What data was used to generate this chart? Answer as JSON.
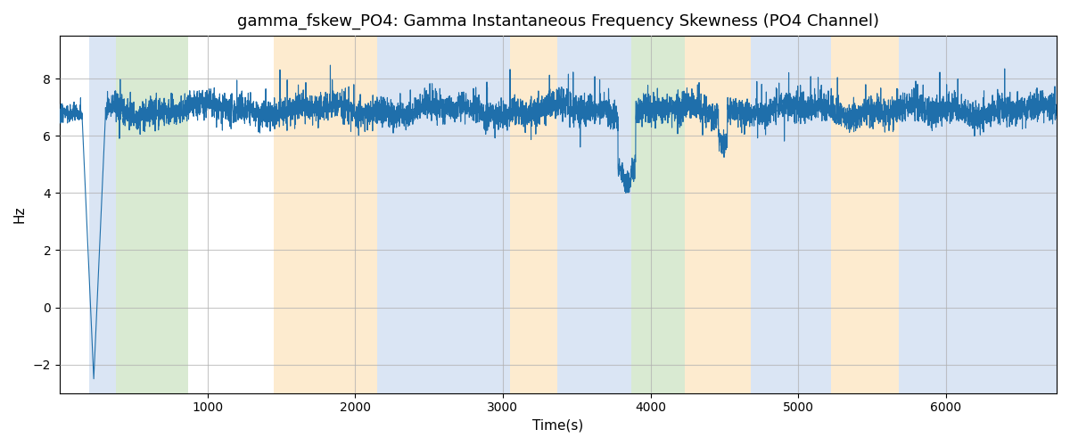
{
  "title": "gamma_fskew_PO4: Gamma Instantaneous Frequency Skewness (PO4 Channel)",
  "xlabel": "Time(s)",
  "ylabel": "Hz",
  "xlim": [
    0,
    6750
  ],
  "ylim": [
    -3,
    9.5
  ],
  "yticks": [
    -2,
    0,
    2,
    4,
    6,
    8
  ],
  "xticks": [
    1000,
    2000,
    3000,
    4000,
    5000,
    6000
  ],
  "line_color": "#1f6fab",
  "line_width": 0.8,
  "grid_color": "#b0b0b0",
  "background_color": "#ffffff",
  "bands": [
    {
      "start": 200,
      "end": 380,
      "color": "#aec6e8",
      "alpha": 0.45
    },
    {
      "start": 380,
      "end": 870,
      "color": "#b5d6a7",
      "alpha": 0.5
    },
    {
      "start": 1450,
      "end": 2150,
      "color": "#fdd9a0",
      "alpha": 0.5
    },
    {
      "start": 2150,
      "end": 3050,
      "color": "#aec6e8",
      "alpha": 0.45
    },
    {
      "start": 3050,
      "end": 3370,
      "color": "#fdd9a0",
      "alpha": 0.5
    },
    {
      "start": 3370,
      "end": 3770,
      "color": "#aec6e8",
      "alpha": 0.45
    },
    {
      "start": 3770,
      "end": 3870,
      "color": "#aec6e8",
      "alpha": 0.45
    },
    {
      "start": 3870,
      "end": 4230,
      "color": "#b5d6a7",
      "alpha": 0.5
    },
    {
      "start": 4230,
      "end": 4680,
      "color": "#fdd9a0",
      "alpha": 0.5
    },
    {
      "start": 4680,
      "end": 5220,
      "color": "#aec6e8",
      "alpha": 0.45
    },
    {
      "start": 5220,
      "end": 5680,
      "color": "#fdd9a0",
      "alpha": 0.5
    },
    {
      "start": 5680,
      "end": 6750,
      "color": "#aec6e8",
      "alpha": 0.45
    }
  ],
  "seed": 42,
  "n_points": 6750,
  "base_mean": 6.9,
  "noise_std": 0.25,
  "transient_peak_down": -2.5,
  "transient_x_start": 200,
  "transient_x_end": 320
}
